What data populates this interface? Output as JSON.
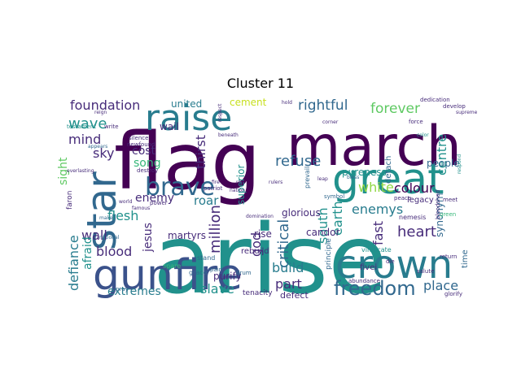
{
  "title": "Cluster 11",
  "colors": {
    "dark_purple": "#440154",
    "indigo": "#472c7a",
    "blue": "#3b528b",
    "steel": "#31688e",
    "teal_blue": "#287c8e",
    "teal": "#21918c",
    "sea_green": "#20a486",
    "green": "#35b779",
    "lime": "#5ec962",
    "light_lime": "#90d743",
    "yellow": "#c8e020"
  },
  "words": [
    {
      "text": "arise"
    },
    {
      "text": "flag"
    },
    {
      "text": "march"
    },
    {
      "text": "raise"
    },
    {
      "text": "great"
    },
    {
      "text": "crown"
    },
    {
      "text": "gunfire"
    },
    {
      "text": "star"
    },
    {
      "text": "brave"
    },
    {
      "text": "freedom"
    },
    {
      "text": "foundation"
    },
    {
      "text": "rightful"
    },
    {
      "text": "forever"
    },
    {
      "text": "wave"
    },
    {
      "text": "mind"
    },
    {
      "text": "sky"
    },
    {
      "text": "cost"
    },
    {
      "text": "song"
    },
    {
      "text": "thirst"
    },
    {
      "text": "refuse"
    },
    {
      "text": "enemy"
    },
    {
      "text": "flesh"
    },
    {
      "text": "roar"
    },
    {
      "text": "white"
    },
    {
      "text": "colour"
    },
    {
      "text": "centre"
    },
    {
      "text": "heart"
    },
    {
      "text": "wall"
    },
    {
      "text": "blood"
    },
    {
      "text": "jesus"
    },
    {
      "text": "million"
    },
    {
      "text": "god"
    },
    {
      "text": "critical"
    },
    {
      "text": "south"
    },
    {
      "text": "earth"
    },
    {
      "text": "enemys"
    },
    {
      "text": "fast"
    },
    {
      "text": "build"
    },
    {
      "text": "part"
    },
    {
      "text": "place"
    },
    {
      "text": "extremes"
    },
    {
      "text": "slave"
    },
    {
      "text": "defiance"
    },
    {
      "text": "afraid"
    },
    {
      "text": "sight"
    },
    {
      "text": "martyrs"
    },
    {
      "text": "purify"
    },
    {
      "text": "rise"
    },
    {
      "text": "glorious"
    },
    {
      "text": "candor"
    },
    {
      "text": "pureness"
    },
    {
      "text": "superior"
    },
    {
      "text": "united"
    },
    {
      "text": "cement"
    },
    {
      "text": "wail"
    },
    {
      "text": "people"
    },
    {
      "text": "detach"
    },
    {
      "text": "legacy"
    },
    {
      "text": "synonym"
    },
    {
      "text": "time"
    },
    {
      "text": "defect"
    },
    {
      "text": "tenacity"
    },
    {
      "text": "rebuild"
    },
    {
      "text": "fivei"
    },
    {
      "text": "principle"
    },
    {
      "text": "vindicate"
    },
    {
      "text": "nemesis"
    },
    {
      "text": "faron"
    },
    {
      "text": "die"
    },
    {
      "text": "glorify"
    },
    {
      "text": "pray"
    },
    {
      "text": "grace"
    },
    {
      "text": "pain"
    },
    {
      "text": "drum"
    },
    {
      "text": "stand"
    },
    {
      "text": "spare"
    },
    {
      "text": "abundance"
    },
    {
      "text": "salute"
    },
    {
      "text": "return"
    },
    {
      "text": "patriot"
    },
    {
      "text": "nation"
    },
    {
      "text": "domination"
    },
    {
      "text": "prevail"
    },
    {
      "text": "symbol"
    },
    {
      "text": "peace"
    },
    {
      "text": "meet"
    },
    {
      "text": "bloodshed"
    },
    {
      "text": "green"
    },
    {
      "text": "dedication"
    },
    {
      "text": "develop"
    },
    {
      "text": "supreme"
    },
    {
      "text": "respond"
    },
    {
      "text": "hold"
    },
    {
      "text": "corner"
    },
    {
      "text": "force"
    },
    {
      "text": "color"
    },
    {
      "text": "testament"
    },
    {
      "text": "write"
    },
    {
      "text": "silence"
    },
    {
      "text": "newfound"
    },
    {
      "text": "everlasting"
    },
    {
      "text": "destroy"
    },
    {
      "text": "world"
    },
    {
      "text": "famous"
    },
    {
      "text": "power"
    },
    {
      "text": "make"
    },
    {
      "text": "national"
    },
    {
      "text": "appears"
    },
    {
      "text": "reign"
    },
    {
      "text": "leap"
    },
    {
      "text": "bless"
    },
    {
      "text": "red"
    },
    {
      "text": "respect"
    },
    {
      "text": "beneath"
    },
    {
      "text": "rulers"
    },
    {
      "text": "fire"
    }
  ]
}
